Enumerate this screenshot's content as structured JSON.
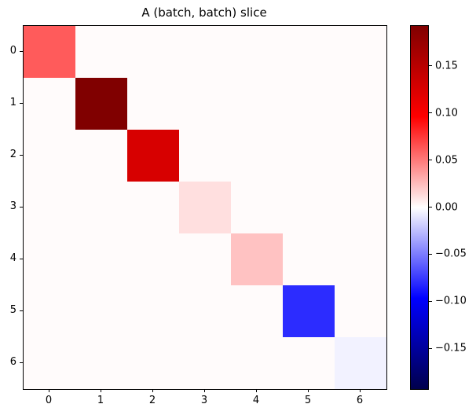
{
  "figure": {
    "background_color": "#FFFFFF",
    "spine_color": "#000000"
  },
  "chart_data": {
    "type": "heatmap",
    "title": "A (batch, batch) slice",
    "rows": 7,
    "cols": 7,
    "x_tick_labels": [
      "0",
      "1",
      "2",
      "3",
      "4",
      "5",
      "6"
    ],
    "y_tick_labels": [
      "0",
      "1",
      "2",
      "3",
      "4",
      "5",
      "6"
    ],
    "matrix": [
      [
        0.062,
        0.0015,
        0.0015,
        0.0015,
        0.0015,
        0.0015,
        0.0015
      ],
      [
        0.0015,
        0.193,
        0.0015,
        0.0015,
        0.0015,
        0.0015,
        0.0015
      ],
      [
        0.0015,
        0.0015,
        0.127,
        0.0015,
        0.0015,
        0.0015,
        0.0015
      ],
      [
        0.0015,
        0.0015,
        0.0015,
        0.012,
        0.0015,
        0.0015,
        0.0015
      ],
      [
        0.0015,
        0.0015,
        0.0015,
        0.0015,
        0.023,
        0.0015,
        0.0015
      ],
      [
        0.0015,
        0.0015,
        0.0015,
        0.0015,
        0.0015,
        -0.08,
        0.0015
      ],
      [
        0.0015,
        0.0015,
        0.0015,
        0.0015,
        0.0015,
        0.0015,
        -0.005
      ]
    ],
    "diagonal_values": [
      0.062,
      0.193,
      0.127,
      0.012,
      0.023,
      -0.08,
      -0.005
    ],
    "vmin": -0.193,
    "vmax": 0.193,
    "grid": false,
    "colormap": "seismic",
    "colormap_anchors": [
      {
        "pos": 0.0,
        "color": "#00004C"
      },
      {
        "pos": 0.25,
        "color": "#0000FF"
      },
      {
        "pos": 0.5,
        "color": "#FFFFFF"
      },
      {
        "pos": 0.75,
        "color": "#FF0000"
      },
      {
        "pos": 1.0,
        "color": "#800000"
      }
    ],
    "colorbar": {
      "position": "right",
      "ticks": [
        {
          "value": 0.15,
          "label": "0.15"
        },
        {
          "value": 0.1,
          "label": "0.10"
        },
        {
          "value": 0.05,
          "label": "0.05"
        },
        {
          "value": 0.0,
          "label": "0.00"
        },
        {
          "value": -0.05,
          "label": "−0.05"
        },
        {
          "value": -0.1,
          "label": "−0.10"
        },
        {
          "value": -0.15,
          "label": "−0.15"
        }
      ]
    }
  }
}
